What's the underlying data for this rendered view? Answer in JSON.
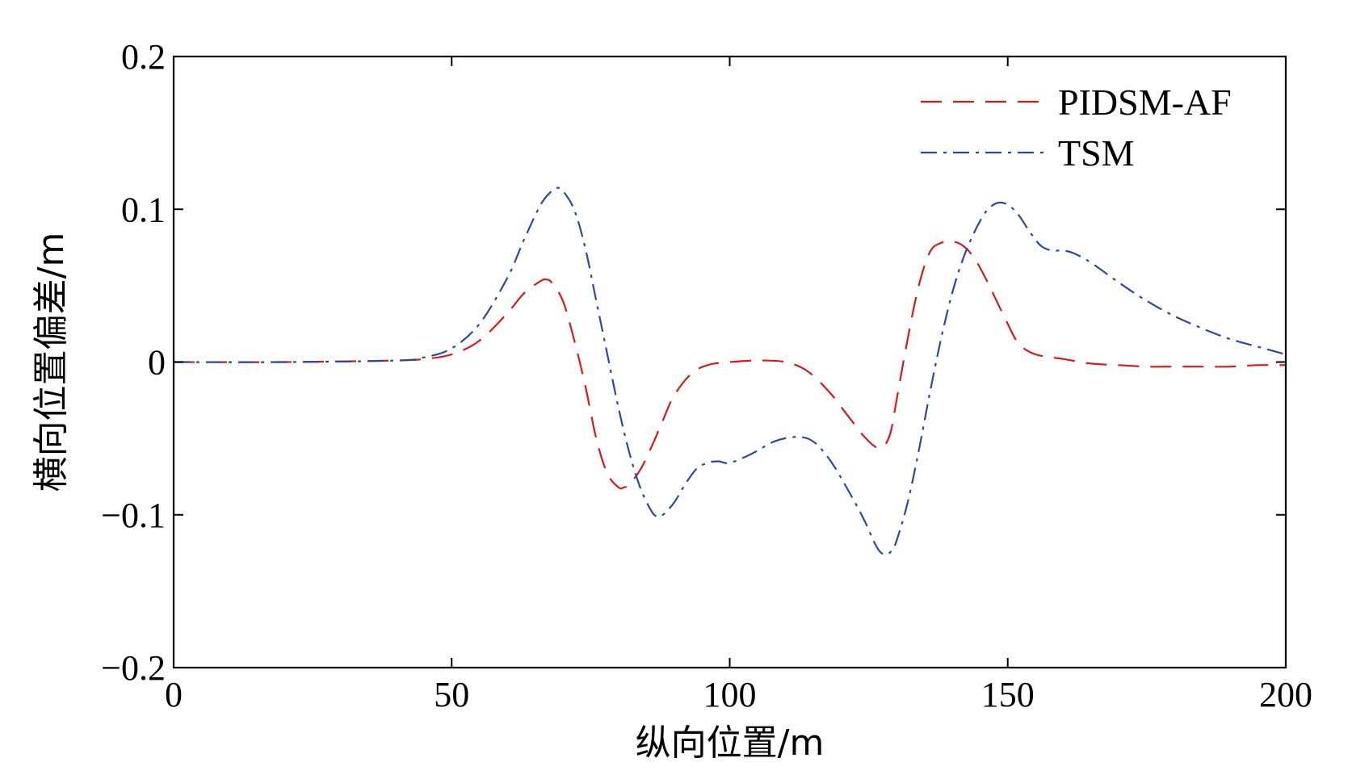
{
  "chart_data": {
    "type": "line",
    "xlabel": "纵向位置/m",
    "ylabel": "横向位置偏差/m",
    "xlim": [
      0,
      200
    ],
    "ylim": [
      -0.2,
      0.2
    ],
    "xticks": [
      0,
      50,
      100,
      150,
      200
    ],
    "yticks": [
      0.2,
      0.1,
      0,
      -0.1,
      -0.2
    ],
    "xtick_labels": [
      "0",
      "50",
      "100",
      "150",
      "200"
    ],
    "ytick_labels": [
      "0.2",
      "0.1",
      "0",
      "−0.1",
      "−0.2"
    ],
    "grid": false,
    "legend": "top-right",
    "series": [
      {
        "name": "PIDSM-AF",
        "color": "#d7191c",
        "dash": "dashed",
        "x": [
          0,
          20,
          40,
          45,
          50,
          55,
          60,
          63,
          66,
          67,
          68,
          70,
          72,
          74,
          76,
          78,
          80,
          81,
          82,
          84,
          86,
          88,
          90,
          93,
          96,
          100,
          105,
          110,
          114,
          118,
          121,
          124,
          126,
          127,
          128,
          129,
          130,
          132,
          134,
          136,
          138,
          140,
          142,
          144,
          146,
          148,
          150,
          152,
          155,
          160,
          165,
          170,
          175,
          180,
          185,
          190,
          195,
          200
        ],
        "y": [
          0,
          0,
          0.001,
          0.002,
          0.005,
          0.014,
          0.032,
          0.045,
          0.053,
          0.054,
          0.052,
          0.04,
          0.015,
          -0.015,
          -0.05,
          -0.073,
          -0.082,
          -0.082,
          -0.08,
          -0.07,
          -0.055,
          -0.038,
          -0.022,
          -0.008,
          -0.002,
          0,
          0.001,
          0,
          -0.006,
          -0.02,
          -0.034,
          -0.048,
          -0.055,
          -0.056,
          -0.054,
          -0.045,
          -0.025,
          0.015,
          0.05,
          0.072,
          0.078,
          0.079,
          0.076,
          0.068,
          0.055,
          0.04,
          0.025,
          0.012,
          0.005,
          0.002,
          -0.001,
          -0.002,
          -0.003,
          -0.003,
          -0.003,
          -0.003,
          -0.002,
          -0.002
        ]
      },
      {
        "name": "TSM",
        "color": "#2b4a9a",
        "dash": "dashdot",
        "x": [
          0,
          20,
          40,
          45,
          50,
          55,
          60,
          63,
          66,
          68,
          69,
          70,
          72,
          74,
          76,
          78,
          80,
          82,
          84,
          86,
          87,
          88,
          90,
          92,
          94,
          96,
          98,
          100,
          104,
          108,
          112,
          115,
          118,
          121,
          124,
          126,
          127,
          128,
          129,
          130,
          132,
          134,
          136,
          138,
          140,
          142,
          144,
          146,
          148,
          150,
          152,
          154,
          156,
          158,
          160,
          162,
          165,
          170,
          175,
          180,
          185,
          190,
          195,
          200
        ],
        "y": [
          0,
          0,
          0.001,
          0.003,
          0.009,
          0.025,
          0.055,
          0.08,
          0.103,
          0.112,
          0.114,
          0.112,
          0.1,
          0.075,
          0.04,
          0.005,
          -0.03,
          -0.06,
          -0.083,
          -0.098,
          -0.101,
          -0.1,
          -0.092,
          -0.08,
          -0.07,
          -0.066,
          -0.065,
          -0.066,
          -0.06,
          -0.052,
          -0.049,
          -0.052,
          -0.064,
          -0.082,
          -0.102,
          -0.118,
          -0.124,
          -0.126,
          -0.124,
          -0.117,
          -0.092,
          -0.058,
          -0.02,
          0.015,
          0.045,
          0.068,
          0.085,
          0.098,
          0.104,
          0.103,
          0.096,
          0.085,
          0.076,
          0.073,
          0.073,
          0.071,
          0.065,
          0.052,
          0.04,
          0.03,
          0.022,
          0.015,
          0.01,
          0.005
        ]
      }
    ]
  }
}
